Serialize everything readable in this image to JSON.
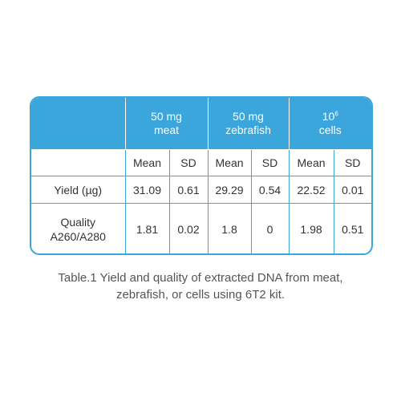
{
  "table": {
    "groups": [
      {
        "line1": "50 mg",
        "line2": "meat",
        "sup": ""
      },
      {
        "line1": "50 mg",
        "line2": "zebrafish",
        "sup": ""
      },
      {
        "line1": "10",
        "line2": "cells",
        "sup": "6"
      }
    ],
    "subheaders": [
      "Mean",
      "SD",
      "Mean",
      "SD",
      "Mean",
      "SD"
    ],
    "rows": [
      {
        "label_line1": "Yield (µg)",
        "label_line2": "",
        "values": [
          "31.09",
          "0.61",
          "29.29",
          "0.54",
          "22.52",
          "0.01"
        ]
      },
      {
        "label_line1": "Quality",
        "label_line2": "A260/A280",
        "values": [
          "1.81",
          "0.02",
          "1.8",
          "0",
          "1.98",
          "0.51"
        ]
      }
    ]
  },
  "caption": {
    "line1": "Table.1 Yield and quality of extracted DNA from meat,",
    "line2": "zebrafish, or cells using 6T2 kit."
  },
  "colors": {
    "accent": "#3aa6dc",
    "text": "#333333"
  }
}
